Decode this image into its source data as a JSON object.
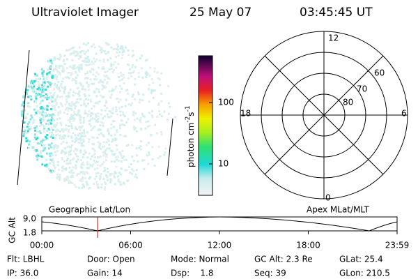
{
  "header": {
    "title": "Ultraviolet Imager",
    "date": "25 May 07",
    "time": "03:45:45 UT"
  },
  "colorbar": {
    "ticks": [
      "100",
      "10"
    ],
    "unit": {
      "base": "photon cm",
      "exp1": "-2",
      "mid": "s",
      "exp2": "-1"
    }
  },
  "polar": {
    "mlt_labels": [
      "12",
      "18",
      "6",
      "0"
    ],
    "lat_labels": [
      "60",
      "70",
      "80"
    ]
  },
  "timeline": {
    "left_label": "Geographic Lat/Lon",
    "right_label": "Apex MLat/MLT",
    "axis_label": "GC Alt",
    "alt_ticks": [
      "9.0",
      "1.8"
    ],
    "time_ticks": [
      "00:00",
      "06:00",
      "12:00",
      "18:00",
      "23:59"
    ]
  },
  "info": {
    "rows": [
      [
        "Flt: LBHL",
        "Door: Open",
        "Mode: Normal",
        "GC Alt: 2.3 Re",
        "GLat: 25.4"
      ],
      [
        "IP: 36.0",
        "Gain: 14",
        "Dsp:    1.8",
        "Seq: 39",
        "GLon: 210.5"
      ]
    ]
  }
}
